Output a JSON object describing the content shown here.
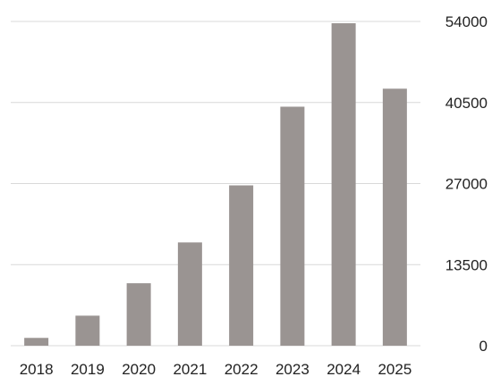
{
  "chart_data": {
    "type": "bar",
    "title": "",
    "xlabel": "",
    "ylabel": "",
    "categories": [
      "2018",
      "2019",
      "2020",
      "2021",
      "2022",
      "2023",
      "2024",
      "2025"
    ],
    "values": [
      1300,
      5000,
      10400,
      17200,
      26700,
      39800,
      53700,
      42800
    ],
    "ylim": [
      0,
      54000
    ],
    "yticks": [
      0,
      13500,
      27000,
      40500,
      54000
    ],
    "y_axis_side": "right",
    "grid": true,
    "legend": "none",
    "bar_color": "#9a9492",
    "grid_color": "#d9d9d9"
  }
}
